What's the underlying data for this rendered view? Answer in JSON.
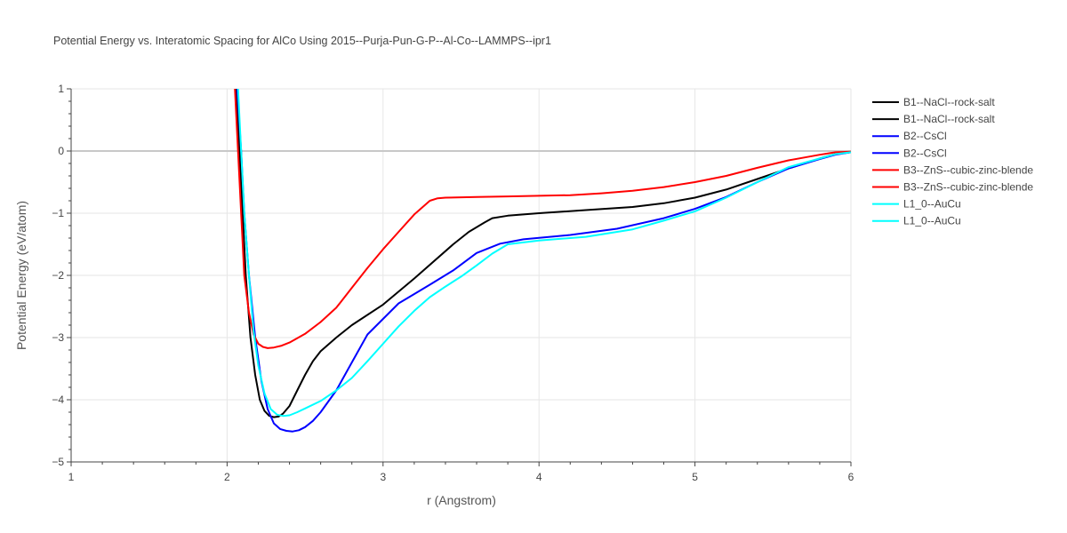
{
  "chart_data": {
    "type": "line",
    "title": "Potential Energy vs. Interatomic Spacing for AlCo Using 2015--Purja-Pun-G-P--Al-Co--LAMMPS--ipr1",
    "xlabel": "r (Angstrom)",
    "ylabel": "Potential Energy (eV/atom)",
    "xlim": [
      1,
      6
    ],
    "ylim": [
      -5,
      1
    ],
    "xticks": [
      1,
      2,
      3,
      4,
      5,
      6
    ],
    "yticks": [
      1,
      0,
      -1,
      -2,
      -3,
      -4,
      -5
    ],
    "xtick_labels": [
      "1",
      "2",
      "3",
      "4",
      "5",
      "6"
    ],
    "ytick_labels": [
      "1",
      "0",
      "−1",
      "−2",
      "−3",
      "−4",
      "−5"
    ],
    "grid": true,
    "legend_position": "right",
    "series": [
      {
        "name": "B1--NaCl--rock-salt",
        "color": "#000000",
        "x": [
          2.06,
          2.08,
          2.1,
          2.12,
          2.15,
          2.18,
          2.21,
          2.24,
          2.27,
          2.3,
          2.33,
          2.36,
          2.4,
          2.45,
          2.5,
          2.55,
          2.6,
          2.7,
          2.8,
          3.0,
          3.2,
          3.45,
          3.55,
          3.65,
          3.7,
          3.8,
          4.0,
          4.3,
          4.6,
          4.8,
          5.0,
          5.2,
          5.4,
          5.6,
          5.8,
          5.9,
          6.0
        ],
        "values": [
          1.0,
          0.0,
          -1.0,
          -2.0,
          -3.0,
          -3.6,
          -4.0,
          -4.18,
          -4.26,
          -4.28,
          -4.27,
          -4.22,
          -4.1,
          -3.85,
          -3.6,
          -3.38,
          -3.22,
          -3.0,
          -2.8,
          -2.47,
          -2.05,
          -1.5,
          -1.3,
          -1.15,
          -1.08,
          -1.04,
          -1.0,
          -0.95,
          -0.9,
          -0.84,
          -0.75,
          -0.62,
          -0.45,
          -0.28,
          -0.12,
          -0.05,
          -0.02
        ]
      },
      {
        "name": "B1--NaCl--rock-salt",
        "color": "#000000",
        "x": [],
        "values": []
      },
      {
        "name": "B2--CsCl",
        "color": "#0000ff",
        "x": [
          2.065,
          2.09,
          2.11,
          2.14,
          2.18,
          2.22,
          2.26,
          2.3,
          2.34,
          2.38,
          2.42,
          2.46,
          2.5,
          2.55,
          2.6,
          2.7,
          2.8,
          2.9,
          3.0,
          3.1,
          3.2,
          3.3,
          3.45,
          3.6,
          3.75,
          3.9,
          4.2,
          4.5,
          4.8,
          5.0,
          5.2,
          5.4,
          5.6,
          5.8,
          5.9,
          6.0
        ],
        "values": [
          1.0,
          0.0,
          -1.0,
          -2.0,
          -3.0,
          -3.7,
          -4.15,
          -4.38,
          -4.47,
          -4.5,
          -4.51,
          -4.49,
          -4.44,
          -4.34,
          -4.2,
          -3.85,
          -3.4,
          -2.95,
          -2.7,
          -2.45,
          -2.3,
          -2.15,
          -1.92,
          -1.64,
          -1.49,
          -1.42,
          -1.35,
          -1.25,
          -1.08,
          -0.93,
          -0.74,
          -0.5,
          -0.28,
          -0.13,
          -0.06,
          -0.02
        ]
      },
      {
        "name": "B2--CsCl",
        "color": "#0000ff",
        "x": [],
        "values": []
      },
      {
        "name": "B3--ZnS--cubic-zinc-blende",
        "color": "#ff0000",
        "x": [
          2.05,
          2.07,
          2.09,
          2.11,
          2.14,
          2.17,
          2.2,
          2.23,
          2.26,
          2.3,
          2.35,
          2.4,
          2.5,
          2.6,
          2.7,
          2.8,
          2.9,
          3.0,
          3.1,
          3.2,
          3.3,
          3.35,
          3.4,
          3.6,
          3.8,
          4.0,
          4.2,
          4.4,
          4.6,
          4.8,
          5.0,
          5.2,
          5.4,
          5.6,
          5.8,
          5.9,
          6.0
        ],
        "values": [
          1.0,
          0.0,
          -1.0,
          -2.0,
          -2.6,
          -2.95,
          -3.1,
          -3.15,
          -3.17,
          -3.16,
          -3.13,
          -3.08,
          -2.94,
          -2.75,
          -2.52,
          -2.2,
          -1.88,
          -1.58,
          -1.3,
          -1.02,
          -0.8,
          -0.76,
          -0.75,
          -0.74,
          -0.73,
          -0.72,
          -0.71,
          -0.68,
          -0.64,
          -0.58,
          -0.5,
          -0.4,
          -0.27,
          -0.15,
          -0.06,
          -0.02,
          -0.01
        ]
      },
      {
        "name": "B3--ZnS--cubic-zinc-blende",
        "color": "#ff0000",
        "x": [],
        "values": []
      },
      {
        "name": "L1_0--AuCu",
        "color": "#00ffff",
        "x": [
          2.07,
          2.09,
          2.11,
          2.14,
          2.17,
          2.2,
          2.24,
          2.28,
          2.32,
          2.36,
          2.4,
          2.45,
          2.5,
          2.6,
          2.7,
          2.8,
          2.9,
          3.0,
          3.1,
          3.2,
          3.3,
          3.4,
          3.5,
          3.6,
          3.7,
          3.8,
          4.0,
          4.3,
          4.6,
          4.8,
          5.0,
          5.2,
          5.4,
          5.6,
          5.8,
          5.9,
          6.0
        ],
        "values": [
          1.0,
          0.0,
          -1.0,
          -2.0,
          -2.9,
          -3.45,
          -3.9,
          -4.15,
          -4.24,
          -4.26,
          -4.25,
          -4.2,
          -4.14,
          -4.02,
          -3.85,
          -3.65,
          -3.38,
          -3.1,
          -2.82,
          -2.57,
          -2.35,
          -2.18,
          -2.02,
          -1.84,
          -1.65,
          -1.5,
          -1.44,
          -1.38,
          -1.26,
          -1.12,
          -0.97,
          -0.75,
          -0.5,
          -0.26,
          -0.12,
          -0.05,
          -0.02
        ]
      },
      {
        "name": "L1_0--AuCu",
        "color": "#00ffff",
        "x": [],
        "values": []
      }
    ]
  }
}
